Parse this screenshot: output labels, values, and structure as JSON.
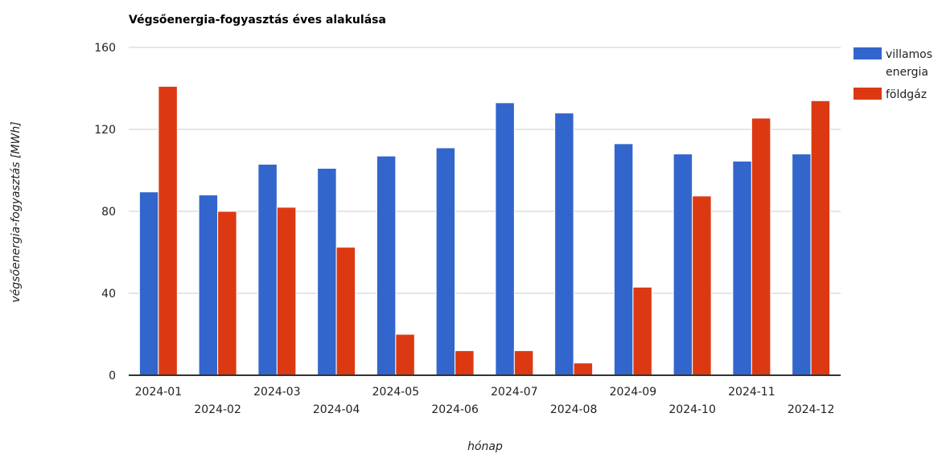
{
  "chart_data": {
    "type": "bar",
    "title": "Végsőenergia-fogyasztás éves alakulása",
    "xlabel": "hónap",
    "ylabel": "végsőenergia-fogyasztás [MWh]",
    "ylim": [
      0,
      160
    ],
    "yticks": [
      0,
      40,
      80,
      120,
      160
    ],
    "grid": true,
    "legend_position": "right",
    "categories": [
      "2024-01",
      "2024-02",
      "2024-03",
      "2024-04",
      "2024-05",
      "2024-06",
      "2024-07",
      "2024-08",
      "2024-09",
      "2024-10",
      "2024-11",
      "2024-12"
    ],
    "series": [
      {
        "name": "villamos energia",
        "color": "#3366cc",
        "values": [
          89.5,
          88,
          103,
          101,
          107,
          111,
          133,
          128,
          113,
          108,
          104.5,
          108
        ]
      },
      {
        "name": "földgáz",
        "color": "#dc3912",
        "values": [
          141,
          80,
          82,
          62.5,
          20,
          12,
          12,
          6,
          43,
          87.5,
          125.5,
          134
        ]
      }
    ]
  }
}
